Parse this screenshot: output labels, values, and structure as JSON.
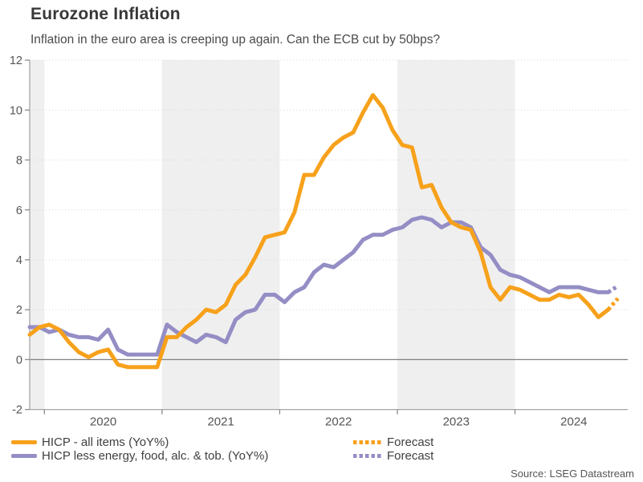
{
  "chart_data": {
    "type": "line",
    "title": "Eurozone Inflation",
    "subtitle": "Inflation in the euro area is creeping up again. Can the ECB cut by 50bps?",
    "ylim": [
      -2,
      12
    ],
    "y_tick_step": 2,
    "y_tick_values": [
      -2,
      0,
      2,
      4,
      6,
      8,
      10,
      12
    ],
    "x_tick_years": [
      2020,
      2021,
      2022,
      2023,
      2024
    ],
    "x_range": [
      "2019-11",
      "2024-12"
    ],
    "shaded_years": [
      2019,
      2021,
      2023
    ],
    "grid": "horizontal-dotted",
    "zero_line": true,
    "legend_position": "bottom",
    "series": [
      {
        "name": "HICP - all items (YoY%)",
        "color": "#F7A11B",
        "start_month": "2019-11",
        "values": [
          1.0,
          1.3,
          1.4,
          1.2,
          0.7,
          0.3,
          0.1,
          0.3,
          0.4,
          -0.2,
          -0.3,
          -0.3,
          -0.3,
          -0.3,
          0.9,
          0.9,
          1.3,
          1.6,
          2.0,
          1.9,
          2.2,
          3.0,
          3.4,
          4.1,
          4.9,
          5.0,
          5.1,
          5.9,
          7.4,
          7.4,
          8.1,
          8.6,
          8.9,
          9.1,
          9.9,
          10.6,
          10.1,
          9.2,
          8.6,
          8.5,
          6.9,
          7.0,
          6.1,
          5.5,
          5.3,
          5.2,
          4.3,
          2.9,
          2.4,
          2.9,
          2.8,
          2.6,
          2.4,
          2.4,
          2.6,
          2.5,
          2.6,
          2.2,
          1.7,
          2.0
        ]
      },
      {
        "name": "HICP less energy, food, alc. & tob. (YoY%)",
        "color": "#948EC5",
        "start_month": "2019-11",
        "values": [
          1.3,
          1.3,
          1.1,
          1.2,
          1.0,
          0.9,
          0.9,
          0.8,
          1.2,
          0.4,
          0.2,
          0.2,
          0.2,
          0.2,
          1.4,
          1.1,
          0.9,
          0.7,
          1.0,
          0.9,
          0.7,
          1.6,
          1.9,
          2.0,
          2.6,
          2.6,
          2.3,
          2.7,
          2.9,
          3.5,
          3.8,
          3.7,
          4.0,
          4.3,
          4.8,
          5.0,
          5.0,
          5.2,
          5.3,
          5.6,
          5.7,
          5.6,
          5.3,
          5.5,
          5.5,
          5.3,
          4.5,
          4.2,
          3.6,
          3.4,
          3.3,
          3.1,
          2.9,
          2.7,
          2.9,
          2.9,
          2.9,
          2.8,
          2.7,
          2.7
        ]
      }
    ],
    "forecast_series": [
      {
        "name": "Forecast",
        "color": "#F7A11B",
        "start_month": "2024-10",
        "values": [
          2.0,
          2.45
        ]
      },
      {
        "name": "Forecast",
        "color": "#948EC5",
        "start_month": "2024-10",
        "values": [
          2.7,
          2.95
        ]
      }
    ]
  },
  "colors": {
    "band": "#EFEFEF",
    "gridline": "#D9D9D9",
    "zero_line": "#808080",
    "axis_line": "#A6A6A6",
    "tick_mark": "#8C8C8C",
    "tick_text": "#555555"
  },
  "source": "Source: LSEG Datastream"
}
